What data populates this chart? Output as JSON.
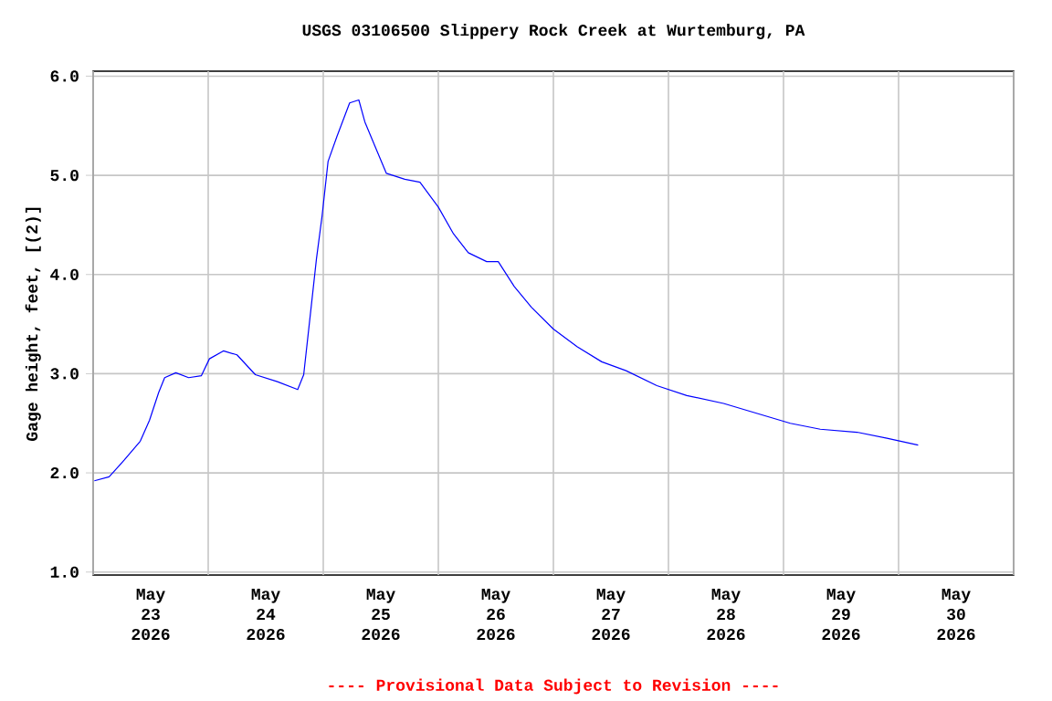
{
  "chart_data": {
    "type": "line",
    "title": "USGS 03106500 Slippery Rock Creek at Wurtemburg, PA",
    "ylabel": "Gage height, feet, [(2)]",
    "annotations": [
      "---- Provisional Data Subject to Revision ----"
    ],
    "x": [
      "2026-05-23T00:15",
      "2026-05-23T03:20",
      "2026-05-23T06:30",
      "2026-05-23T09:50",
      "2026-05-23T11:45",
      "2026-05-23T13:40",
      "2026-05-23T14:55",
      "2026-05-23T17:15",
      "2026-05-23T19:55",
      "2026-05-23T22:35",
      "2026-05-24T00:15",
      "2026-05-24T03:10",
      "2026-05-24T06:00",
      "2026-05-24T09:50",
      "2026-05-24T14:25",
      "2026-05-24T18:40",
      "2026-05-24T19:55",
      "2026-05-24T21:20",
      "2026-05-24T22:35",
      "2026-05-24T23:45",
      "2026-05-25T01:00",
      "2026-05-25T02:50",
      "2026-05-25T05:30",
      "2026-05-25T07:25",
      "2026-05-25T08:40",
      "2026-05-25T11:15",
      "2026-05-25T13:10",
      "2026-05-25T17:00",
      "2026-05-25T20:10",
      "2026-05-26T00:00",
      "2026-05-26T03:10",
      "2026-05-26T06:15",
      "2026-05-26T10:05",
      "2026-05-26T12:30",
      "2026-05-26T15:50",
      "2026-05-26T19:25",
      "2026-05-27T00:00",
      "2026-05-27T05:00",
      "2026-05-27T10:05",
      "2026-05-27T15:10",
      "2026-05-27T21:35",
      "2026-05-28T03:50",
      "2026-05-28T11:30",
      "2026-05-28T19:10",
      "2026-05-29T01:25",
      "2026-05-29T07:40",
      "2026-05-29T15:20",
      "2026-05-29T21:35",
      "2026-05-30T04:05"
    ],
    "series": [
      {
        "color": "#0000ff",
        "values": [
          1.92,
          1.96,
          2.13,
          2.32,
          2.53,
          2.81,
          2.96,
          3.01,
          2.96,
          2.98,
          3.15,
          3.23,
          3.19,
          2.99,
          2.92,
          2.84,
          2.99,
          3.61,
          4.16,
          4.59,
          5.14,
          5.39,
          5.73,
          5.76,
          5.54,
          5.24,
          5.02,
          4.96,
          4.93,
          4.68,
          4.41,
          4.22,
          4.13,
          4.13,
          3.88,
          3.67,
          3.45,
          3.27,
          3.12,
          3.03,
          2.88,
          2.78,
          2.7,
          2.59,
          2.5,
          2.44,
          2.41,
          2.35,
          2.28
        ]
      }
    ],
    "xlim": [
      "2026-05-23T00:00",
      "2026-05-31T00:00"
    ],
    "xticks": [
      {
        "value": "2026-05-23T00:00",
        "label": null
      },
      {
        "value": "2026-05-23T12:00",
        "label": "May 23 2026"
      },
      {
        "value": "2026-05-24T00:00",
        "label": null
      },
      {
        "value": "2026-05-24T12:00",
        "label": "May 24 2026"
      },
      {
        "value": "2026-05-25T00:00",
        "label": null
      },
      {
        "value": "2026-05-25T12:00",
        "label": "May 25 2026"
      },
      {
        "value": "2026-05-26T00:00",
        "label": null
      },
      {
        "value": "2026-05-26T12:00",
        "label": "May 26 2026"
      },
      {
        "value": "2026-05-27T00:00",
        "label": null
      },
      {
        "value": "2026-05-27T12:00",
        "label": "May 27 2026"
      },
      {
        "value": "2026-05-28T00:00",
        "label": null
      },
      {
        "value": "2026-05-28T12:00",
        "label": "May 28 2026"
      },
      {
        "value": "2026-05-29T00:00",
        "label": null
      },
      {
        "value": "2026-05-29T12:00",
        "label": "May 29 2026"
      },
      {
        "value": "2026-05-30T00:00",
        "label": null
      },
      {
        "value": "2026-05-30T12:00",
        "label": "May 30 2026"
      },
      {
        "value": "2026-05-31T00:00",
        "label": null
      }
    ],
    "ylim": [
      0.97,
      6.05
    ],
    "yticks": [
      {
        "value": 1,
        "label": "1.0"
      },
      {
        "value": 2,
        "label": "2.0"
      },
      {
        "value": 3,
        "label": "3.0"
      },
      {
        "value": 4,
        "label": "4.0"
      },
      {
        "value": 5,
        "label": "5.0"
      },
      {
        "value": 6,
        "label": "6.0"
      }
    ],
    "grid": true,
    "marker": "none",
    "line_style": "solid"
  }
}
